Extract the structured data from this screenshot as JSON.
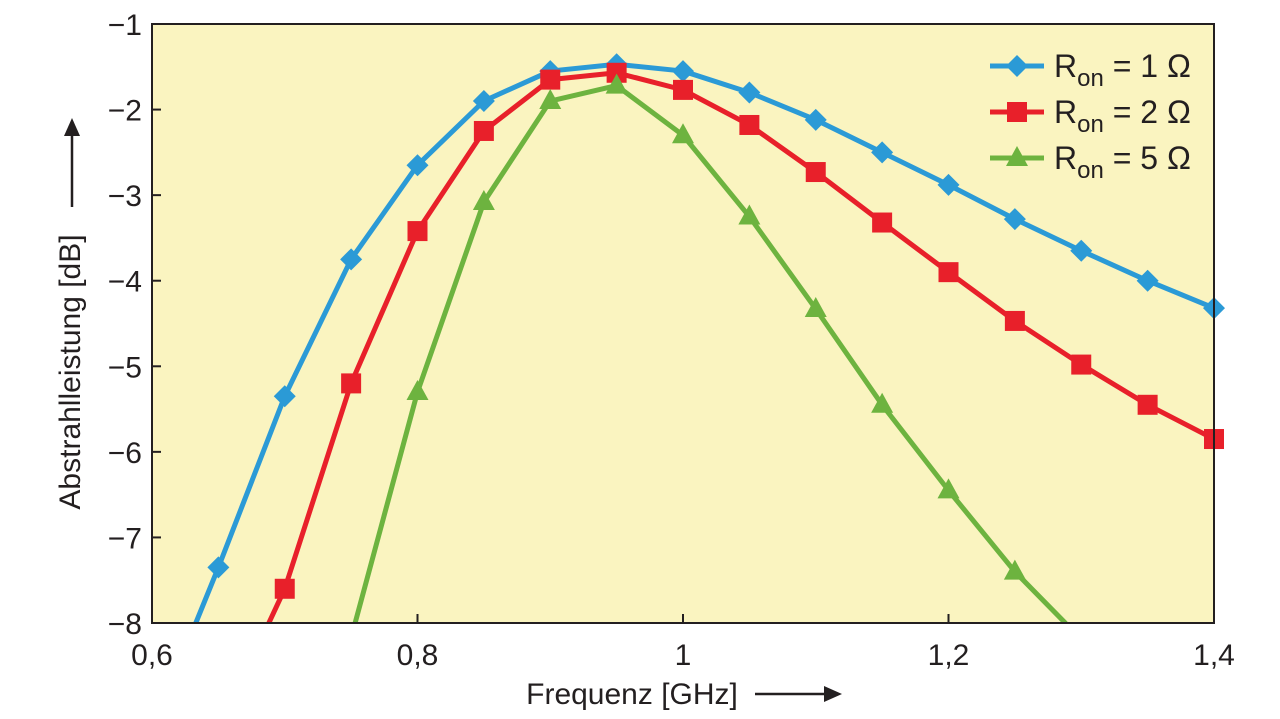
{
  "chart_data": {
    "type": "line",
    "title": "",
    "xlabel": "Frequenz [GHz]",
    "ylabel": "Abstrahlleistung [dB]",
    "xlim": [
      0.6,
      1.4
    ],
    "ylim": [
      -8,
      -1
    ],
    "xticks": [
      0.6,
      0.8,
      1.0,
      1.2,
      1.4
    ],
    "xtick_labels": [
      "0,6",
      "0,8",
      "1",
      "1,2",
      "1,4"
    ],
    "yticks": [
      -1,
      -2,
      -3,
      -4,
      -5,
      -6,
      -7,
      -8
    ],
    "ytick_labels": [
      "−1",
      "−2",
      "−3",
      "−4",
      "−5",
      "−6",
      "−7",
      "−8"
    ],
    "grid": false,
    "legend_placement": "top-right",
    "background": "#faf4c0",
    "series": [
      {
        "name": "R",
        "name_sub": "on",
        "name_suffix": " = 1 Ω",
        "color": "#2b9ad6",
        "marker": "diamond",
        "x": [
          0.65,
          0.7,
          0.75,
          0.8,
          0.85,
          0.9,
          0.95,
          1.0,
          1.05,
          1.1,
          1.15,
          1.2,
          1.25,
          1.3,
          1.35,
          1.4
        ],
        "y": [
          -7.35,
          -5.35,
          -3.75,
          -2.65,
          -1.9,
          -1.55,
          -1.47,
          -1.55,
          -1.8,
          -2.12,
          -2.5,
          -2.88,
          -3.28,
          -3.65,
          -4.0,
          -4.32
        ],
        "line_start": [
          0.633,
          -8
        ]
      },
      {
        "name": "R",
        "name_sub": "on",
        "name_suffix": " = 2 Ω",
        "color": "#e8202a",
        "marker": "square",
        "x": [
          0.7,
          0.75,
          0.8,
          0.85,
          0.9,
          0.95,
          1.0,
          1.05,
          1.1,
          1.15,
          1.2,
          1.25,
          1.3,
          1.35,
          1.4
        ],
        "y": [
          -7.6,
          -5.2,
          -3.42,
          -2.25,
          -1.65,
          -1.57,
          -1.77,
          -2.18,
          -2.73,
          -3.32,
          -3.9,
          -4.47,
          -4.98,
          -5.45,
          -5.85
        ],
        "line_start": [
          0.688,
          -8
        ]
      },
      {
        "name": "R",
        "name_sub": "on",
        "name_suffix": " = 5 Ω",
        "color": "#6db33f",
        "marker": "triangle",
        "x": [
          0.8,
          0.85,
          0.9,
          0.95,
          1.0,
          1.05,
          1.1,
          1.15,
          1.2,
          1.25
        ],
        "y": [
          -5.3,
          -3.08,
          -1.9,
          -1.72,
          -2.3,
          -3.25,
          -4.33,
          -5.45,
          -6.45,
          -7.4
        ],
        "line_start": [
          0.753,
          -8
        ],
        "line_end": [
          1.288,
          -8
        ]
      }
    ]
  }
}
